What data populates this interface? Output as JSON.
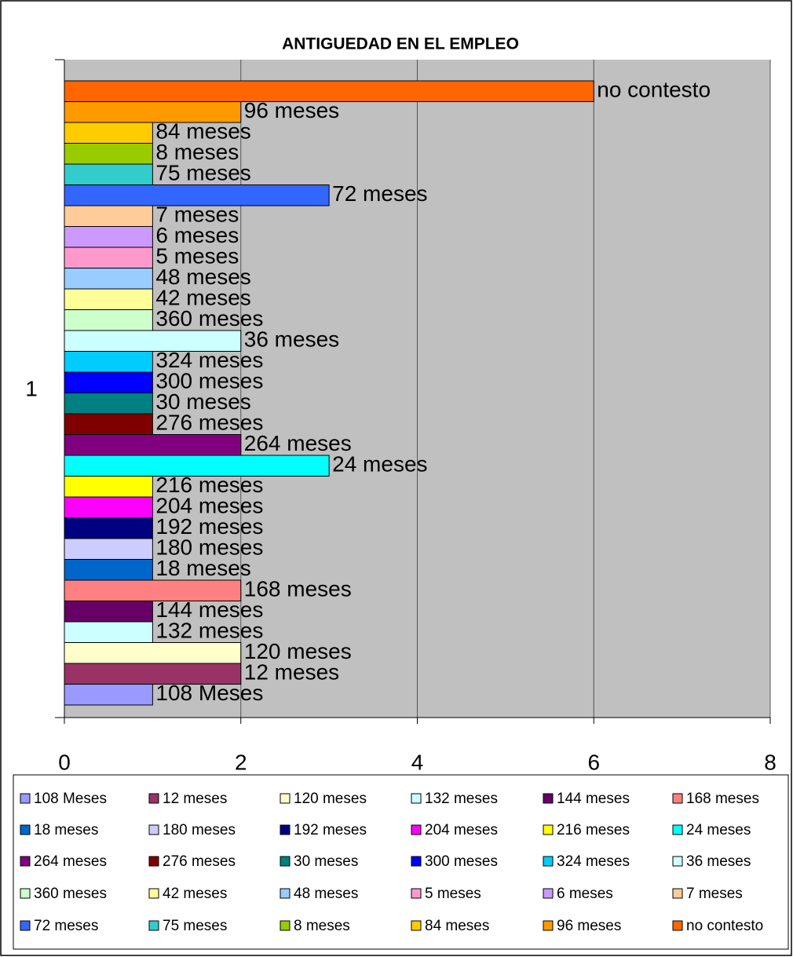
{
  "chart_data": {
    "type": "bar",
    "orientation": "horizontal",
    "title": "ANTIGUEDAD EN EL EMPLEO",
    "categories": [
      "1"
    ],
    "xlim": [
      0,
      8
    ],
    "xticks": [
      0,
      2,
      4,
      6,
      8
    ],
    "grid": true,
    "legend": "bottom",
    "series": [
      {
        "name": "108 Meses",
        "color": "#9999FF",
        "values": [
          1
        ]
      },
      {
        "name": "12 meses",
        "color": "#993366",
        "values": [
          2
        ]
      },
      {
        "name": "120 meses",
        "color": "#FFFFCC",
        "values": [
          2
        ]
      },
      {
        "name": "132 meses",
        "color": "#CCFFFF",
        "values": [
          1
        ]
      },
      {
        "name": "144 meses",
        "color": "#660066",
        "values": [
          1
        ]
      },
      {
        "name": "168 meses",
        "color": "#FF8080",
        "values": [
          2
        ]
      },
      {
        "name": "18 meses",
        "color": "#0066CC",
        "values": [
          1
        ]
      },
      {
        "name": "180 meses",
        "color": "#CCCCFF",
        "values": [
          1
        ]
      },
      {
        "name": "192 meses",
        "color": "#000080",
        "values": [
          1
        ]
      },
      {
        "name": "204 meses",
        "color": "#FF00FF",
        "values": [
          1
        ]
      },
      {
        "name": "216 meses",
        "color": "#FFFF00",
        "values": [
          1
        ]
      },
      {
        "name": "24 meses",
        "color": "#00FFFF",
        "values": [
          3
        ]
      },
      {
        "name": "264 meses",
        "color": "#800080",
        "values": [
          2
        ]
      },
      {
        "name": "276 meses",
        "color": "#800000",
        "values": [
          1
        ]
      },
      {
        "name": "30 meses",
        "color": "#008080",
        "values": [
          1
        ]
      },
      {
        "name": "300 meses",
        "color": "#0000FF",
        "values": [
          1
        ]
      },
      {
        "name": "324 meses",
        "color": "#00CCFF",
        "values": [
          1
        ]
      },
      {
        "name": "36 meses",
        "color": "#CCFFFF",
        "values": [
          2
        ]
      },
      {
        "name": "360 meses",
        "color": "#CCFFCC",
        "values": [
          1
        ]
      },
      {
        "name": "42 meses",
        "color": "#FFFF99",
        "values": [
          1
        ]
      },
      {
        "name": "48 meses",
        "color": "#99CCFF",
        "values": [
          1
        ]
      },
      {
        "name": "5 meses",
        "color": "#FF99CC",
        "values": [
          1
        ]
      },
      {
        "name": "6 meses",
        "color": "#CC99FF",
        "values": [
          1
        ]
      },
      {
        "name": "7 meses",
        "color": "#FFCC99",
        "values": [
          1
        ]
      },
      {
        "name": "72 meses",
        "color": "#3366FF",
        "values": [
          3
        ]
      },
      {
        "name": "75 meses",
        "color": "#33CCCC",
        "values": [
          1
        ]
      },
      {
        "name": "8 meses",
        "color": "#99CC00",
        "values": [
          1
        ]
      },
      {
        "name": "84 meses",
        "color": "#FFCC00",
        "values": [
          1
        ]
      },
      {
        "name": "96 meses",
        "color": "#FF9900",
        "values": [
          2
        ]
      },
      {
        "name": "no contesto",
        "color": "#FF6600",
        "values": [
          6
        ]
      }
    ]
  }
}
